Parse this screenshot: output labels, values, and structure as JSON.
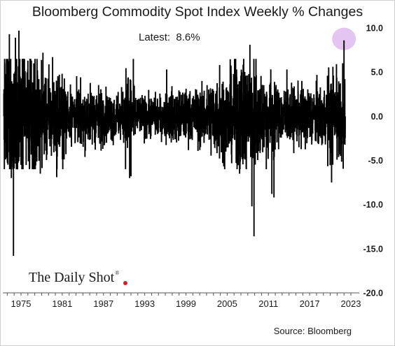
{
  "chart_data": {
    "type": "bar",
    "title": "Bloomberg Commodity Spot Index Weekly % Changes",
    "annotation": "Latest:  8.6%",
    "source": "Source: Bloomberg",
    "logo": "The Daily Shot",
    "logo_mark": "®",
    "xlabel": "",
    "ylabel": "",
    "x_range": [
      1972.5,
      2022.2
    ],
    "ylim": [
      -20.0,
      10.0
    ],
    "y_ticks": [
      10.0,
      5.0,
      0.0,
      -5.0,
      -10.0,
      -15.0,
      -20.0
    ],
    "y_tick_labels": [
      "10.0",
      "5.0",
      "0.0",
      "-5.0",
      "-10.0",
      "-15.0",
      "-20.0"
    ],
    "x_ticks": [
      1975,
      1981,
      1987,
      1993,
      1999,
      2005,
      2011,
      2017,
      2023
    ],
    "x_tick_labels": [
      "1975",
      "1981",
      "1987",
      "1993",
      "1999",
      "2005",
      "2011",
      "2017",
      "2023"
    ],
    "latest_value": 8.6,
    "highlight_color": "#e4c4f0",
    "bar_color": "#000000",
    "series": [
      {
        "values_note": "weekly percent changes, approx 1972.5 to 2022.2 (read from chart)",
        "values": []
      }
    ],
    "segments": [
      {
        "start": 1972.5,
        "end": 1977.5,
        "amp": 5.5
      },
      {
        "start": 1977.5,
        "end": 1981.5,
        "amp": 3.5
      },
      {
        "start": 1981.5,
        "end": 1987.0,
        "amp": 2.4
      },
      {
        "start": 1987.0,
        "end": 1990.0,
        "amp": 2.0
      },
      {
        "start": 1990.0,
        "end": 1991.5,
        "amp": 3.8
      },
      {
        "start": 1991.5,
        "end": 1996.0,
        "amp": 1.7
      },
      {
        "start": 1996.0,
        "end": 2000.5,
        "amp": 2.1
      },
      {
        "start": 2000.5,
        "end": 2002.5,
        "amp": 2.5
      },
      {
        "start": 2002.5,
        "end": 2006.0,
        "amp": 3.4
      },
      {
        "start": 2006.0,
        "end": 2009.5,
        "amp": 4.6
      },
      {
        "start": 2009.5,
        "end": 2012.0,
        "amp": 3.6
      },
      {
        "start": 2012.0,
        "end": 2015.5,
        "amp": 2.3
      },
      {
        "start": 2015.5,
        "end": 2019.5,
        "amp": 2.5
      },
      {
        "start": 2019.5,
        "end": 2022.2,
        "amp": 3.6
      }
    ],
    "notable_points": [
      {
        "x": 1973.3,
        "y": 9.3
      },
      {
        "x": 1973.6,
        "y": -7.0
      },
      {
        "x": 1973.9,
        "y": -15.8
      },
      {
        "x": 1974.2,
        "y": 8.9
      },
      {
        "x": 1974.7,
        "y": 9.7
      },
      {
        "x": 1975.0,
        "y": -5.5
      },
      {
        "x": 1976.5,
        "y": 6.3
      },
      {
        "x": 1978.2,
        "y": 7.2
      },
      {
        "x": 1979.6,
        "y": 6.7
      },
      {
        "x": 1977.8,
        "y": -6.5
      },
      {
        "x": 1980.2,
        "y": -6.9
      },
      {
        "x": 1990.6,
        "y": 4.4
      },
      {
        "x": 1990.8,
        "y": -7.0
      },
      {
        "x": 1991.0,
        "y": -6.8
      },
      {
        "x": 1996.2,
        "y": 5.3
      },
      {
        "x": 2003.9,
        "y": 5.8
      },
      {
        "x": 2005.6,
        "y": 4.8
      },
      {
        "x": 2006.3,
        "y": -5.3
      },
      {
        "x": 2006.8,
        "y": -6.5
      },
      {
        "x": 2007.6,
        "y": -4.9
      },
      {
        "x": 2008.3,
        "y": 8.1
      },
      {
        "x": 2008.6,
        "y": -10.2
      },
      {
        "x": 2008.9,
        "y": -13.6
      },
      {
        "x": 2009.2,
        "y": 6.5
      },
      {
        "x": 2011.5,
        "y": -8.8
      },
      {
        "x": 2011.8,
        "y": -9.2
      },
      {
        "x": 2013.7,
        "y": 5.3
      },
      {
        "x": 2020.2,
        "y": -7.5
      },
      {
        "x": 2020.9,
        "y": 5.9
      },
      {
        "x": 2021.5,
        "y": -4.5
      },
      {
        "x": 2021.8,
        "y": 6.0
      },
      {
        "x": 2022.0,
        "y": 8.6
      }
    ]
  }
}
